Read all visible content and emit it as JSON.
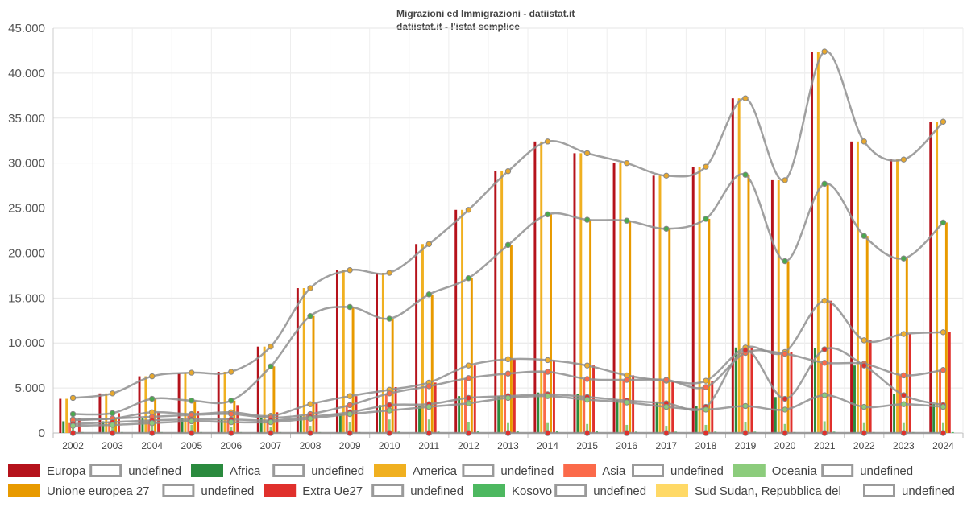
{
  "title": "Migrazioni ed Immigrazioni - datiistat.it",
  "subtitle": "datiistat.it - l'istat semplice",
  "chart_data": {
    "type": "bar",
    "x": [
      2002,
      2003,
      2004,
      2005,
      2006,
      2007,
      2008,
      2009,
      2010,
      2011,
      2012,
      2013,
      2014,
      2015,
      2016,
      2017,
      2018,
      2019,
      2020,
      2021,
      2022,
      2023,
      2024
    ],
    "ylim": [
      0,
      45000
    ],
    "yticks": [
      "0",
      "5.000",
      "10.000",
      "15.000",
      "20.000",
      "25.000",
      "30.000",
      "35.000",
      "40.000",
      "45.000"
    ],
    "ytick_values": [
      0,
      5000,
      10000,
      15000,
      20000,
      25000,
      30000,
      35000,
      40000,
      45000
    ],
    "grid": true,
    "legend_position": "bottom",
    "series": [
      {
        "name": "Europa",
        "color": "#b5121b",
        "values": [
          3800,
          4400,
          6300,
          6700,
          6800,
          9600,
          16100,
          18100,
          17800,
          21000,
          24800,
          29100,
          32400,
          31100,
          30000,
          28600,
          29600,
          37200,
          28100,
          42400,
          32400,
          30400,
          34600
        ]
      },
      {
        "name": "Africa",
        "color": "#2a8a3e",
        "values": [
          1300,
          1300,
          1600,
          1700,
          1500,
          1700,
          1900,
          2100,
          3100,
          3000,
          4100,
          4100,
          4500,
          4300,
          3700,
          3500,
          3000,
          9500,
          4000,
          9400,
          7500,
          4300,
          3200
        ]
      },
      {
        "name": "America",
        "color": "#f0b020",
        "values": [
          3800,
          4400,
          6300,
          6700,
          6800,
          9600,
          16100,
          18100,
          17800,
          21000,
          24800,
          29100,
          32400,
          31100,
          30000,
          28600,
          29600,
          37200,
          28100,
          42400,
          32400,
          30400,
          34600
        ]
      },
      {
        "name": "Asia",
        "color": "#fb6a4a",
        "values": [
          1100,
          1300,
          1400,
          1900,
          1700,
          1400,
          2100,
          3100,
          4400,
          5200,
          6100,
          6600,
          6800,
          6000,
          5900,
          5900,
          5100,
          8900,
          8800,
          7800,
          7700,
          6400,
          7000
        ]
      },
      {
        "name": "Oceania",
        "color": "#8ccc7c",
        "values": [
          700,
          700,
          800,
          900,
          700,
          700,
          800,
          1200,
          1500,
          1500,
          1200,
          1100,
          1100,
          1000,
          900,
          800,
          900,
          1200,
          1000,
          1300,
          1100,
          1100,
          1100
        ]
      },
      {
        "name": "Unione europea 27",
        "color": "#e89a00",
        "values": [
          0,
          1700,
          3800,
          3600,
          3600,
          7400,
          13000,
          14000,
          12700,
          15400,
          17200,
          20900,
          24300,
          23700,
          23600,
          22700,
          23800,
          28700,
          19100,
          27700,
          21900,
          19400,
          23400
        ]
      },
      {
        "name": "Extra Ue27",
        "color": "#e0302c",
        "values": [
          1700,
          2200,
          2300,
          2400,
          3100,
          2300,
          3300,
          4100,
          5100,
          5600,
          7500,
          8200,
          8100,
          7500,
          6400,
          5800,
          5800,
          9500,
          9000,
          14700,
          10300,
          11000,
          11200
        ]
      },
      {
        "name": "Kosovo",
        "color": "#4db860",
        "values": [
          100,
          100,
          100,
          100,
          100,
          100,
          100,
          100,
          150,
          150,
          200,
          200,
          200,
          200,
          150,
          150,
          150,
          150,
          100,
          150,
          100,
          100,
          100
        ]
      },
      {
        "name": "Sud Sudan, Repubblica del",
        "color": "#ffd966",
        "values": [
          0,
          0,
          0,
          0,
          0,
          0,
          0,
          0,
          0,
          0,
          0,
          0,
          0,
          0,
          0,
          0,
          0,
          0,
          0,
          0,
          0,
          0,
          0
        ]
      }
    ],
    "trend_lines": [
      {
        "values": [
          3900,
          4400,
          6300,
          6700,
          6800,
          9600,
          16100,
          18100,
          17800,
          21000,
          24800,
          29100,
          32400,
          31100,
          30000,
          28600,
          29600,
          37200,
          28100,
          42400,
          32400,
          30400,
          34600
        ],
        "dot": "#e8a82c"
      },
      {
        "values": [
          2100,
          2200,
          3800,
          3600,
          3600,
          7400,
          13000,
          14000,
          12700,
          15400,
          17200,
          20900,
          24300,
          23700,
          23600,
          22700,
          23800,
          28700,
          19100,
          27700,
          21900,
          19400,
          23400
        ],
        "dot": "#4aa84e"
      },
      {
        "values": [
          1500,
          1600,
          2300,
          2100,
          2300,
          1900,
          3200,
          4100,
          4800,
          5600,
          7500,
          8200,
          8100,
          7500,
          6400,
          5800,
          5800,
          9500,
          9000,
          14700,
          10300,
          11000,
          11200
        ],
        "dot": "#f0b030"
      },
      {
        "values": [
          1400,
          1600,
          1800,
          2000,
          2100,
          1700,
          2100,
          3100,
          4400,
          5200,
          6100,
          6600,
          6800,
          6000,
          5900,
          5900,
          5100,
          8900,
          8800,
          7800,
          7700,
          6400,
          7000
        ],
        "dot": "#fb6a4a"
      },
      {
        "values": [
          1000,
          1200,
          1400,
          1500,
          1500,
          1400,
          1800,
          2300,
          3100,
          3200,
          3900,
          4100,
          4300,
          4000,
          3600,
          3300,
          2900,
          9200,
          3800,
          9300,
          7500,
          4200,
          3100
        ],
        "dot": "#e0302c"
      },
      {
        "values": [
          800,
          900,
          1100,
          1300,
          1200,
          1200,
          1600,
          2100,
          2500,
          2900,
          3300,
          3900,
          4100,
          3700,
          3400,
          2900,
          2600,
          3000,
          2600,
          4200,
          2900,
          3200,
          2900
        ],
        "dot": "#8ccc7c"
      },
      {
        "values": [
          0,
          0,
          0,
          0,
          0,
          0,
          0,
          0,
          0,
          0,
          0,
          0,
          0,
          0,
          0,
          0,
          0,
          0,
          0,
          0,
          0,
          0,
          0
        ],
        "dot": "#e0302c"
      }
    ]
  },
  "legend": [
    {
      "label": "Europa",
      "color": "#b5121b"
    },
    {
      "label": "undefined",
      "color": null
    },
    {
      "label": "Africa",
      "color": "#2a8a3e"
    },
    {
      "label": "undefined",
      "color": null
    },
    {
      "label": "America",
      "color": "#f0b020"
    },
    {
      "label": "undefined",
      "color": null
    },
    {
      "label": "Asia",
      "color": "#fb6a4a"
    },
    {
      "label": "undefined",
      "color": null
    },
    {
      "label": "Oceania",
      "color": "#8ccc7c"
    },
    {
      "label": "undefined",
      "color": null
    },
    {
      "label": "Unione europea 27",
      "color": "#e89a00"
    },
    {
      "label": "undefined",
      "color": null
    },
    {
      "label": "Extra Ue27",
      "color": "#e0302c"
    },
    {
      "label": "undefined",
      "color": null
    },
    {
      "label": "Kosovo",
      "color": "#4db860"
    },
    {
      "label": "undefined",
      "color": null
    },
    {
      "label": "Sud Sudan, Repubblica del",
      "color": "#ffd966"
    },
    {
      "label": "undefined",
      "color": null
    }
  ]
}
